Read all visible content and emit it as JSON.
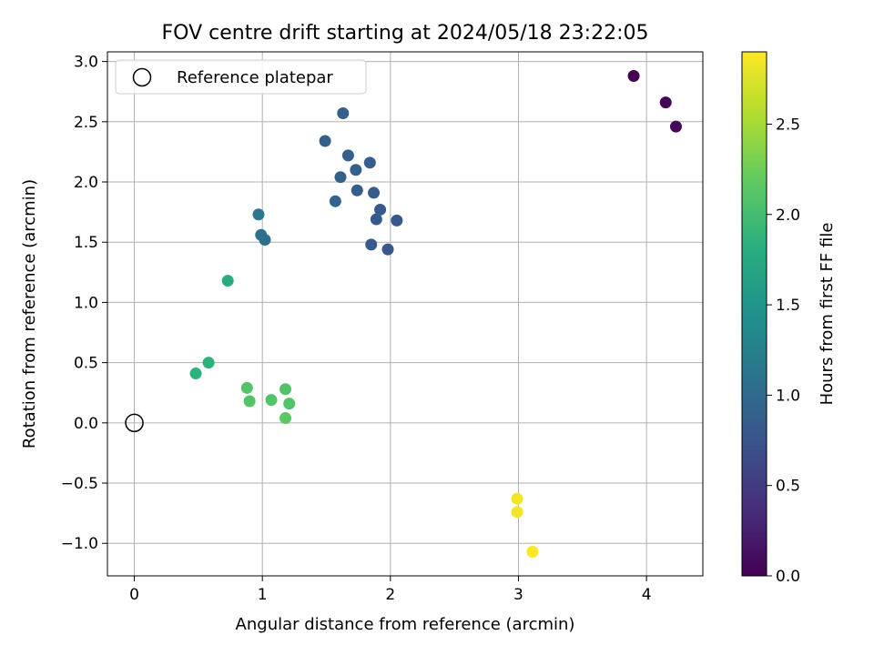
{
  "chart_data": {
    "type": "scatter",
    "title": "FOV centre drift starting at 2024/05/18 23:22:05",
    "xlabel": "Angular distance from reference (arcmin)",
    "ylabel": "Rotation from reference (arcmin)",
    "xlim": [
      -0.21,
      4.44
    ],
    "ylim": [
      -1.27,
      3.08
    ],
    "xticks": [
      0,
      1,
      2,
      3,
      4
    ],
    "yticks": [
      -1.0,
      -0.5,
      0.0,
      0.5,
      1.0,
      1.5,
      2.0,
      2.5,
      3.0
    ],
    "grid": true,
    "legend": {
      "placement": "top-left",
      "entries": [
        "Reference platepar"
      ]
    },
    "reference_point": {
      "x": 0.0,
      "y": 0.0,
      "label": "Reference platepar",
      "marker": "open-circle"
    },
    "colorbar": {
      "label": "Hours from first FF file",
      "colormap": "viridis",
      "range": [
        0.0,
        2.9
      ],
      "ticks": [
        0.0,
        0.5,
        1.0,
        1.5,
        2.0,
        2.5
      ]
    },
    "points": [
      {
        "x": 3.9,
        "y": 2.88,
        "hours": 0.0
      },
      {
        "x": 4.15,
        "y": 2.66,
        "hours": 0.03
      },
      {
        "x": 4.23,
        "y": 2.46,
        "hours": 0.05
      },
      {
        "x": 1.63,
        "y": 2.57,
        "hours": 0.9
      },
      {
        "x": 1.49,
        "y": 2.34,
        "hours": 0.9
      },
      {
        "x": 1.67,
        "y": 2.22,
        "hours": 0.88
      },
      {
        "x": 1.84,
        "y": 2.16,
        "hours": 0.85
      },
      {
        "x": 1.73,
        "y": 2.1,
        "hours": 0.87
      },
      {
        "x": 1.61,
        "y": 2.04,
        "hours": 0.9
      },
      {
        "x": 1.74,
        "y": 1.93,
        "hours": 0.85
      },
      {
        "x": 1.87,
        "y": 1.91,
        "hours": 0.83
      },
      {
        "x": 1.57,
        "y": 1.84,
        "hours": 0.92
      },
      {
        "x": 1.92,
        "y": 1.77,
        "hours": 0.82
      },
      {
        "x": 1.89,
        "y": 1.69,
        "hours": 0.82
      },
      {
        "x": 2.05,
        "y": 1.68,
        "hours": 0.8
      },
      {
        "x": 1.85,
        "y": 1.48,
        "hours": 0.8
      },
      {
        "x": 1.98,
        "y": 1.44,
        "hours": 0.78
      },
      {
        "x": 0.97,
        "y": 1.73,
        "hours": 1.15
      },
      {
        "x": 0.99,
        "y": 1.56,
        "hours": 1.05
      },
      {
        "x": 1.02,
        "y": 1.52,
        "hours": 1.05
      },
      {
        "x": 0.73,
        "y": 1.18,
        "hours": 1.8
      },
      {
        "x": 0.48,
        "y": 0.41,
        "hours": 1.85
      },
      {
        "x": 0.58,
        "y": 0.5,
        "hours": 1.85
      },
      {
        "x": 0.88,
        "y": 0.29,
        "hours": 2.1
      },
      {
        "x": 0.9,
        "y": 0.18,
        "hours": 2.1
      },
      {
        "x": 1.07,
        "y": 0.19,
        "hours": 2.1
      },
      {
        "x": 1.18,
        "y": 0.28,
        "hours": 2.1
      },
      {
        "x": 1.21,
        "y": 0.16,
        "hours": 2.1
      },
      {
        "x": 1.18,
        "y": 0.04,
        "hours": 2.15
      },
      {
        "x": 2.99,
        "y": -0.63,
        "hours": 2.85
      },
      {
        "x": 2.99,
        "y": -0.74,
        "hours": 2.85
      },
      {
        "x": 3.11,
        "y": -1.07,
        "hours": 2.9
      }
    ]
  }
}
